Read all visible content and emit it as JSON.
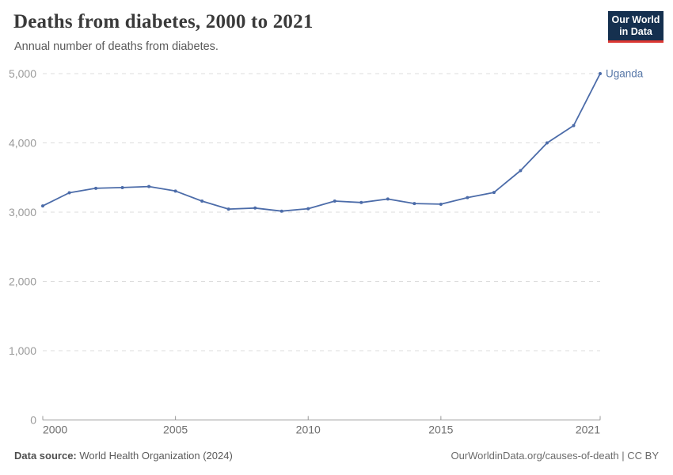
{
  "header": {
    "title": "Deaths from diabetes, 2000 to 2021",
    "subtitle": "Annual number of deaths from diabetes.",
    "logo": {
      "line1": "Our World",
      "line2": "in Data"
    }
  },
  "footer": {
    "source_label": "Data source:",
    "source_value": " World Health Organization (2024)",
    "credit": "OurWorldinData.org/causes-of-death | CC BY"
  },
  "chart_data": {
    "type": "line",
    "title": "Deaths from diabetes, 2000 to 2021",
    "subtitle": "Annual number of deaths from diabetes.",
    "x": [
      2000,
      2001,
      2002,
      2003,
      2004,
      2005,
      2006,
      2007,
      2008,
      2009,
      2010,
      2011,
      2012,
      2013,
      2014,
      2015,
      2016,
      2017,
      2018,
      2019,
      2020,
      2021
    ],
    "series": [
      {
        "name": "Uganda",
        "color": "#4c6ca9",
        "values": [
          3090,
          3280,
          3345,
          3355,
          3370,
          3305,
          3160,
          3045,
          3060,
          3015,
          3050,
          3160,
          3140,
          3190,
          3125,
          3115,
          3210,
          3285,
          3600,
          4000,
          4250,
          5000
        ]
      }
    ],
    "xlabel": "",
    "ylabel": "",
    "xlim": [
      2000,
      2021
    ],
    "ylim": [
      0,
      5000
    ],
    "yticks": [
      0,
      1000,
      2000,
      3000,
      4000,
      5000
    ],
    "ytick_labels": [
      "0",
      "1,000",
      "2,000",
      "3,000",
      "4,000",
      "5,000"
    ],
    "xticks": [
      2000,
      2005,
      2010,
      2015,
      2021
    ],
    "xtick_labels": [
      "2000",
      "2005",
      "2010",
      "2015",
      "2021"
    ],
    "grid": "horizontal-dashed",
    "legend_position": "end-of-line-label",
    "end_label": "Uganda"
  },
  "colors": {
    "line": "#4c6ca9",
    "end_label": "#5878a8",
    "gridline": "#dcdcdc",
    "axis": "#9a9a9a",
    "ytick_text": "#9a9a9a",
    "xtick_text": "#6e6e6e",
    "logo_bg": "#15304f",
    "logo_red": "#dc3732"
  }
}
